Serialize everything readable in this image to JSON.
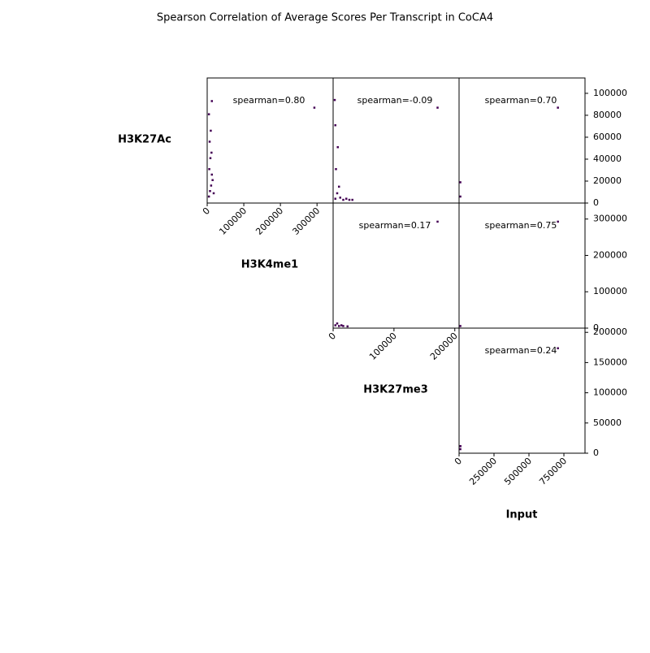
{
  "chart_data": {
    "type": "pairplot",
    "title": "Spearson Correlation of Average Scores Per Transcript in CoCA4",
    "color": "#440154",
    "variables": {
      "H3K27Ac": {
        "label": "H3K27Ac",
        "ylim": [
          0,
          114000
        ],
        "yticks": [
          0,
          20000,
          40000,
          60000,
          80000,
          100000
        ]
      },
      "H3K4me1": {
        "label": "H3K4me1",
        "xlim": [
          0,
          344000
        ],
        "xticks": [
          0,
          100000,
          200000,
          300000
        ],
        "ylim": [
          0,
          344000
        ],
        "yticks": [
          0,
          100000,
          200000,
          300000
        ]
      },
      "H3K27me3": {
        "label": "H3K27me3",
        "xlim": [
          0,
          207000
        ],
        "xticks": [
          0,
          100000,
          200000
        ],
        "ylim": [
          0,
          207000
        ],
        "yticks": [
          0,
          50000,
          100000,
          150000,
          200000
        ]
      },
      "Input": {
        "label": "Input",
        "xlim": [
          0,
          901000
        ],
        "xticks": [
          0,
          250000,
          500000,
          750000
        ]
      }
    },
    "rows": [
      "H3K27Ac",
      "H3K4me1",
      "H3K27me3"
    ],
    "columns": [
      "H3K4me1",
      "H3K27me3",
      "Input"
    ],
    "panels": [
      {
        "xvar": "H3K4me1",
        "yvar": "H3K27Ac",
        "annotation": "spearman=0.80",
        "x": [
          2000,
          5000,
          8000,
          12000,
          3000,
          6000,
          10000,
          4000,
          7000,
          15000,
          2000,
          9000,
          10000,
          290000
        ],
        "y": [
          5000,
          10000,
          15000,
          20000,
          30000,
          40000,
          25000,
          55000,
          65000,
          8000,
          80000,
          45000,
          92000,
          86000
        ]
      },
      {
        "xvar": "H3K27me3",
        "yvar": "H3K27Ac",
        "annotation": "spearman=-0.09",
        "x": [
          2000,
          5000,
          10000,
          15000,
          20000,
          25000,
          3000,
          6000,
          2000,
          8000,
          1000,
          30000,
          170000
        ],
        "y": [
          3000,
          8000,
          4000,
          2000,
          3000,
          2000,
          30000,
          50000,
          70000,
          14000,
          93000,
          2000,
          86000
        ]
      },
      {
        "xvar": "Input",
        "yvar": "H3K27Ac",
        "annotation": "spearman=0.70",
        "x": [
          2000,
          2000,
          700000
        ],
        "y": [
          5000,
          18000,
          86000
        ]
      },
      {
        "xvar": "H3K27me3",
        "yvar": "H3K4me1",
        "annotation": "spearman=0.17",
        "x": [
          2000,
          8000,
          15000,
          22000,
          5000,
          12000,
          170000
        ],
        "y": [
          5000,
          3000,
          3000,
          2000,
          10000,
          5000,
          290000
        ]
      },
      {
        "xvar": "Input",
        "yvar": "H3K4me1",
        "annotation": "spearman=0.75",
        "x": [
          2000,
          700000
        ],
        "y": [
          3000,
          290000
        ]
      },
      {
        "xvar": "Input",
        "yvar": "H3K27me3",
        "annotation": "spearman=0.24",
        "x": [
          2000,
          3000,
          700000
        ],
        "y": [
          5000,
          10000,
          172000
        ]
      }
    ]
  }
}
